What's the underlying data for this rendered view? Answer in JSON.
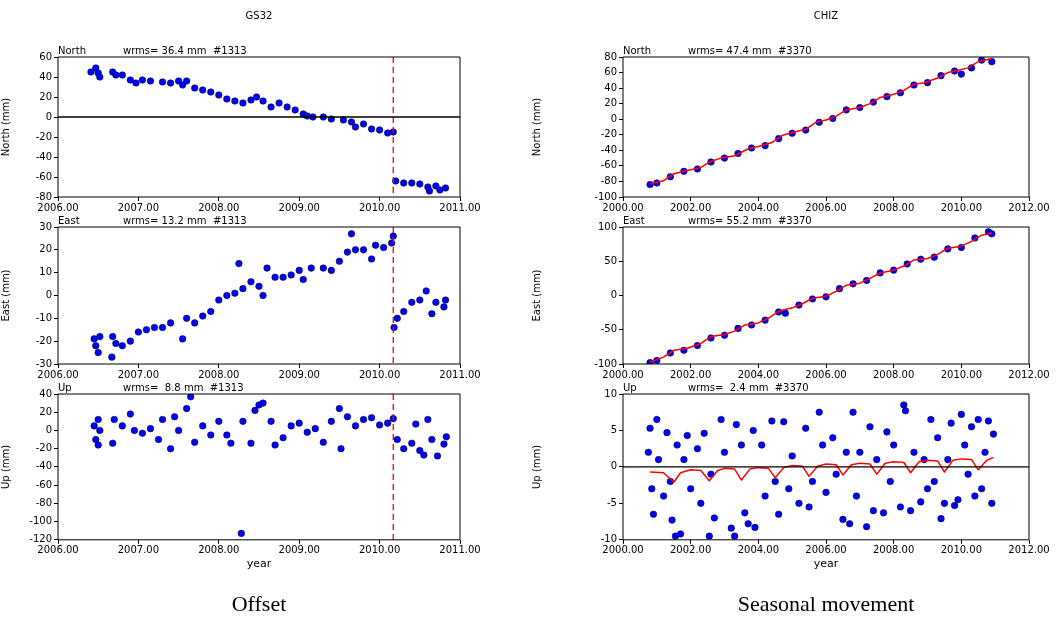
{
  "chart_data": [
    {
      "type": "scatter",
      "title": "GS32",
      "annotations": [
        "North",
        "wrms= 36.4 mm  #1313"
      ],
      "ylabel": "North (mm)",
      "marker": "circle",
      "xlim": [
        2006,
        2011
      ],
      "xticks": [
        {
          "value": 2006,
          "label": "2006.00"
        },
        {
          "value": 2007,
          "label": "2007.00"
        },
        {
          "value": 2008,
          "label": "2008.00"
        },
        {
          "value": 2009,
          "label": "2009.00"
        },
        {
          "value": 2010,
          "label": "2010.00"
        },
        {
          "value": 2011,
          "label": "2011.00"
        }
      ],
      "ylim": [
        -80,
        60
      ],
      "yticks": [
        -80,
        -60,
        -40,
        -20,
        0,
        20,
        40,
        60
      ],
      "ref_lines": [
        {
          "axis": "x",
          "value": 2010.17,
          "color": "#ff0000",
          "line_style": "dashed"
        },
        {
          "axis": "y",
          "value": 0,
          "color": "#000000"
        }
      ],
      "series": [
        {
          "color": "#0000ff",
          "x": [
            2006.41,
            2006.47,
            2006.5,
            2006.52,
            2006.68,
            2006.72,
            2006.8,
            2006.9,
            2006.97,
            2007.05,
            2007.15,
            2007.3,
            2007.4,
            2007.5,
            2007.55,
            2007.6,
            2007.7,
            2007.8,
            2007.9,
            2008.0,
            2008.1,
            2008.2,
            2008.3,
            2008.4,
            2008.47,
            2008.55,
            2008.65,
            2008.75,
            2008.85,
            2008.95,
            2009.05,
            2009.1,
            2009.17,
            2009.3,
            2009.4,
            2009.55,
            2009.65,
            2009.7,
            2009.8,
            2009.9,
            2010.0,
            2010.1,
            2010.17,
            2010.2,
            2010.3,
            2010.4,
            2010.5,
            2010.6,
            2010.62,
            2010.7,
            2010.75,
            2010.82
          ],
          "values": [
            45,
            49,
            44,
            40,
            45,
            42,
            42,
            37,
            34,
            37,
            36,
            35,
            34,
            36,
            32,
            36,
            29,
            27,
            25,
            22,
            18,
            16,
            14,
            17,
            20,
            16,
            10,
            14,
            10,
            7,
            3,
            1,
            0,
            0,
            -2,
            -3,
            -5,
            -10,
            -7,
            -12,
            -13,
            -16,
            -15,
            -64,
            -66,
            -66,
            -67,
            -70,
            -74,
            -69,
            -73,
            -71
          ]
        }
      ]
    },
    {
      "type": "scatter",
      "title": "CHIZ",
      "annotations": [
        "North",
        "wrms= 47.4 mm  #3370"
      ],
      "ylabel": "North (mm)",
      "marker": "circle",
      "xlim": [
        2000,
        2012
      ],
      "xticks": [
        {
          "value": 2000,
          "label": "2000.00"
        },
        {
          "value": 2002,
          "label": "2002.00"
        },
        {
          "value": 2004,
          "label": "2004.00"
        },
        {
          "value": 2006,
          "label": "2006.00"
        },
        {
          "value": 2008,
          "label": "2008.00"
        },
        {
          "value": 2010,
          "label": "2010.00"
        },
        {
          "value": 2012,
          "label": "2012.00"
        }
      ],
      "ylim": [
        -100,
        80
      ],
      "yticks": [
        -100,
        -80,
        -60,
        -40,
        -20,
        0,
        20,
        40,
        60,
        80
      ],
      "series": [
        {
          "color": "#0000ff",
          "x": [
            2000.8,
            2001.0,
            2001.4,
            2001.8,
            2002.2,
            2002.6,
            2003.0,
            2003.4,
            2003.8,
            2004.2,
            2004.6,
            2005.0,
            2005.4,
            2005.8,
            2006.2,
            2006.6,
            2007.0,
            2007.4,
            2007.8,
            2008.2,
            2008.6,
            2009.0,
            2009.4,
            2009.8,
            2010.0,
            2010.3,
            2010.6,
            2010.9
          ],
          "values": [
            -84,
            -82,
            -74,
            -67,
            -64,
            -55,
            -50,
            -44,
            -37,
            -34,
            -25,
            -18,
            -14,
            -4,
            1,
            12,
            15,
            22,
            29,
            34,
            44,
            47,
            56,
            62,
            58,
            66,
            76,
            74
          ]
        },
        {
          "type": "line",
          "marker": "none",
          "color": "#ff0000",
          "x": [
            2000.8,
            2001.2,
            2001.5,
            2001.9,
            2002.3,
            2002.6,
            2002.9,
            2003.3,
            2003.7,
            2004.0,
            2004.4,
            2004.7,
            2005.0,
            2005.4,
            2005.7,
            2006.0,
            2006.3,
            2006.6,
            2007.0,
            2007.3,
            2007.6,
            2008.0,
            2008.3,
            2008.6,
            2008.9,
            2009.3,
            2009.6,
            2009.9,
            2010.2,
            2010.5,
            2010.9
          ],
          "values": [
            -83,
            -79,
            -70,
            -66,
            -62,
            -54,
            -50,
            -47,
            -38,
            -35,
            -30,
            -21,
            -17,
            -13,
            -4,
            -1,
            4,
            12,
            15,
            20,
            28,
            32,
            37,
            45,
            47,
            53,
            60,
            63,
            66,
            74,
            78
          ]
        }
      ]
    },
    {
      "type": "scatter",
      "annotations": [
        "East",
        "wrms= 13.2 mm  #1313"
      ],
      "ylabel": "East (mm)",
      "marker": "circle",
      "xlim": [
        2006,
        2011
      ],
      "xticks": [
        {
          "value": 2006,
          "label": "2006.00"
        },
        {
          "value": 2007,
          "label": "2007.00"
        },
        {
          "value": 2008,
          "label": "2008.00"
        },
        {
          "value": 2009,
          "label": "2009.00"
        },
        {
          "value": 2010,
          "label": "2010.00"
        },
        {
          "value": 2011,
          "label": "2011.00"
        }
      ],
      "ylim": [
        -30,
        30
      ],
      "yticks": [
        -30,
        -20,
        -10,
        0,
        10,
        20,
        30
      ],
      "ref_lines": [
        {
          "axis": "x",
          "value": 2010.17,
          "color": "#ff0000",
          "line_style": "dashed"
        }
      ],
      "series": [
        {
          "color": "#0000ff",
          "x": [
            2006.45,
            2006.47,
            2006.5,
            2006.52,
            2006.67,
            2006.68,
            2006.72,
            2006.8,
            2006.9,
            2007.0,
            2007.1,
            2007.2,
            2007.3,
            2007.4,
            2007.55,
            2007.6,
            2007.7,
            2007.8,
            2007.9,
            2008.0,
            2008.1,
            2008.2,
            2008.25,
            2008.3,
            2008.4,
            2008.5,
            2008.55,
            2008.6,
            2008.7,
            2008.8,
            2008.9,
            2009.0,
            2009.05,
            2009.15,
            2009.3,
            2009.4,
            2009.5,
            2009.6,
            2009.65,
            2009.7,
            2009.8,
            2009.9,
            2009.95,
            2010.05,
            2010.15,
            2010.17,
            2010.18,
            2010.22,
            2010.3,
            2010.4,
            2010.5,
            2010.58,
            2010.65,
            2010.7,
            2010.8,
            2010.82
          ],
          "values": [
            -19,
            -22,
            -25,
            -18,
            -27,
            -18,
            -21,
            -22,
            -20,
            -16,
            -15,
            -14,
            -14,
            -12,
            -19,
            -10,
            -12,
            -9,
            -7,
            -2,
            0,
            1,
            14,
            3,
            6,
            4,
            0,
            12,
            8,
            8,
            9,
            11,
            7,
            12,
            12,
            11,
            15,
            19,
            27,
            20,
            20,
            16,
            22,
            21,
            23,
            26,
            -14,
            -10,
            -7,
            -3,
            -2,
            2,
            -8,
            -3,
            -5,
            -2
          ]
        }
      ]
    },
    {
      "type": "scatter",
      "annotations": [
        "East",
        "wrms= 55.2 mm  #3370"
      ],
      "ylabel": "East (mm)",
      "marker": "circle",
      "xlim": [
        2000,
        2012
      ],
      "xticks": [
        {
          "value": 2000,
          "label": "2000.00"
        },
        {
          "value": 2002,
          "label": "2002.00"
        },
        {
          "value": 2004,
          "label": "2004.00"
        },
        {
          "value": 2006,
          "label": "2006.00"
        },
        {
          "value": 2008,
          "label": "2008.00"
        },
        {
          "value": 2010,
          "label": "2010.00"
        },
        {
          "value": 2012,
          "label": "2012.00"
        }
      ],
      "ylim": [
        -100,
        100
      ],
      "yticks": [
        -100,
        -50,
        0,
        50,
        100
      ],
      "series": [
        {
          "color": "#0000ff",
          "x": [
            2000.8,
            2001.0,
            2001.4,
            2001.8,
            2002.2,
            2002.6,
            2003.0,
            2003.4,
            2003.8,
            2004.2,
            2004.6,
            2004.8,
            2005.2,
            2005.6,
            2006.0,
            2006.4,
            2006.8,
            2007.2,
            2007.6,
            2008.0,
            2008.4,
            2008.8,
            2009.2,
            2009.6,
            2010.0,
            2010.4,
            2010.8,
            2010.9
          ],
          "values": [
            -98,
            -95,
            -84,
            -80,
            -73,
            -62,
            -58,
            -48,
            -43,
            -36,
            -24,
            -26,
            -14,
            -5,
            -2,
            10,
            17,
            22,
            33,
            37,
            46,
            53,
            56,
            68,
            70,
            84,
            93,
            90
          ]
        },
        {
          "type": "line",
          "marker": "none",
          "color": "#ff0000",
          "x": [
            2000.8,
            2001.2,
            2001.5,
            2001.9,
            2002.3,
            2002.6,
            2003.0,
            2003.3,
            2003.6,
            2004.0,
            2004.3,
            2004.6,
            2005.0,
            2005.3,
            2005.6,
            2006.0,
            2006.3,
            2006.6,
            2007.0,
            2007.3,
            2007.6,
            2008.0,
            2008.3,
            2008.6,
            2009.0,
            2009.3,
            2009.6,
            2010.0,
            2010.3,
            2010.6,
            2010.9
          ],
          "values": [
            -97,
            -90,
            -80,
            -77,
            -70,
            -60,
            -57,
            -52,
            -43,
            -40,
            -33,
            -23,
            -18,
            -12,
            -4,
            -1,
            6,
            15,
            18,
            25,
            33,
            37,
            43,
            52,
            54,
            60,
            69,
            72,
            79,
            88,
            91
          ]
        }
      ]
    },
    {
      "type": "scatter",
      "annotations": [
        "Up",
        "wrms=  8.8 mm  #1313",
        "Offset"
      ],
      "ylabel": "Up (mm)",
      "xlabel": "year",
      "marker": "circle",
      "xlim": [
        2006,
        2011
      ],
      "xticks": [
        {
          "value": 2006,
          "label": "2006.00"
        },
        {
          "value": 2007,
          "label": "2007.00"
        },
        {
          "value": 2008,
          "label": "2008.00"
        },
        {
          "value": 2009,
          "label": "2009.00"
        },
        {
          "value": 2010,
          "label": "2010.00"
        },
        {
          "value": 2011,
          "label": "2011.00"
        }
      ],
      "ylim": [
        -120,
        40
      ],
      "yticks": [
        -120,
        -100,
        -80,
        -60,
        -40,
        -20,
        0,
        20,
        40
      ],
      "ref_lines": [
        {
          "axis": "x",
          "value": 2010.17,
          "color": "#ff0000",
          "line_style": "dashed"
        }
      ],
      "series": [
        {
          "color": "#0000ff",
          "x": [
            2006.45,
            2006.47,
            2006.5,
            2006.5,
            2006.52,
            2006.68,
            2006.7,
            2006.8,
            2006.9,
            2006.95,
            2007.05,
            2007.15,
            2007.25,
            2007.3,
            2007.4,
            2007.45,
            2007.5,
            2007.6,
            2007.65,
            2007.7,
            2007.8,
            2007.9,
            2008.0,
            2008.1,
            2008.15,
            2008.28,
            2008.3,
            2008.4,
            2008.45,
            2008.5,
            2008.55,
            2008.65,
            2008.7,
            2008.8,
            2008.9,
            2009.0,
            2009.1,
            2009.2,
            2009.3,
            2009.4,
            2009.5,
            2009.52,
            2009.6,
            2009.7,
            2009.8,
            2009.9,
            2010.0,
            2010.1,
            2010.17,
            2010.22,
            2010.3,
            2010.4,
            2010.45,
            2010.5,
            2010.55,
            2010.6,
            2010.65,
            2010.72,
            2010.8,
            2010.83
          ],
          "values": [
            5,
            -10,
            12,
            -16,
            0,
            -14,
            12,
            5,
            18,
            0,
            -3,
            2,
            -10,
            12,
            -20,
            15,
            0,
            24,
            37,
            -13,
            5,
            -5,
            10,
            -5,
            -14,
            -113,
            10,
            -14,
            22,
            28,
            30,
            10,
            -16,
            -8,
            5,
            8,
            -2,
            2,
            -13,
            10,
            24,
            -20,
            15,
            5,
            12,
            14,
            6,
            8,
            13,
            -10,
            -20,
            -14,
            7,
            -22,
            -27,
            12,
            -10,
            -28,
            -15,
            -7
          ]
        }
      ]
    },
    {
      "type": "scatter",
      "annotations": [
        "Up",
        "wrms=  2.4 mm  #3370",
        "Seasonal movement"
      ],
      "ylabel": "Up (mm)",
      "xlabel": "year",
      "marker": "circle",
      "xlim": [
        2000,
        2012
      ],
      "xticks": [
        {
          "value": 2000,
          "label": "2000.00"
        },
        {
          "value": 2002,
          "label": "2002.00"
        },
        {
          "value": 2004,
          "label": "2004.00"
        },
        {
          "value": 2006,
          "label": "2006.00"
        },
        {
          "value": 2008,
          "label": "2008.00"
        },
        {
          "value": 2010,
          "label": "2010.00"
        },
        {
          "value": 2012,
          "label": "2012.00"
        }
      ],
      "ylim": [
        -10,
        10
      ],
      "yticks": [
        -10,
        -5,
        0,
        5,
        10
      ],
      "ref_lines": [
        {
          "axis": "y",
          "value": 0,
          "color": "#000000"
        }
      ],
      "series": [
        {
          "color": "#0000ff",
          "x": [
            2000.75,
            2000.8,
            2000.85,
            2000.9,
            2001.0,
            2001.05,
            2001.2,
            2001.3,
            2001.4,
            2001.45,
            2001.55,
            2001.6,
            2001.7,
            2001.8,
            2001.9,
            2002.0,
            2002.2,
            2002.3,
            2002.4,
            2002.55,
            2002.6,
            2002.7,
            2002.9,
            2003.0,
            2003.2,
            2003.3,
            2003.35,
            2003.5,
            2003.6,
            2003.7,
            2003.85,
            2003.9,
            2004.1,
            2004.2,
            2004.4,
            2004.5,
            2004.6,
            2004.75,
            2004.9,
            2005.0,
            2005.2,
            2005.4,
            2005.5,
            2005.6,
            2005.8,
            2005.9,
            2006.0,
            2006.2,
            2006.3,
            2006.5,
            2006.6,
            2006.7,
            2006.8,
            2006.9,
            2007.0,
            2007.2,
            2007.3,
            2007.4,
            2007.5,
            2007.7,
            2007.8,
            2007.9,
            2008.0,
            2008.2,
            2008.3,
            2008.35,
            2008.5,
            2008.6,
            2008.8,
            2008.9,
            2009.0,
            2009.1,
            2009.2,
            2009.3,
            2009.4,
            2009.5,
            2009.6,
            2009.7,
            2009.8,
            2009.9,
            2010.0,
            2010.1,
            2010.2,
            2010.3,
            2010.4,
            2010.5,
            2010.6,
            2010.7,
            2010.8,
            2010.9,
            2010.95
          ],
          "values": [
            2,
            5.3,
            -3,
            -6.5,
            6.5,
            1,
            -4,
            4.7,
            -2,
            -7.3,
            -9.5,
            3,
            -9.2,
            1,
            4.3,
            -3,
            2.5,
            -5,
            4.6,
            -9.5,
            -1,
            -7,
            6.5,
            2,
            -8.4,
            -9.5,
            5.8,
            3,
            -6.3,
            -7.8,
            5,
            -8.3,
            3,
            -4,
            6.3,
            -2,
            -6.5,
            6.2,
            -3,
            1.5,
            -5,
            5.3,
            -5.5,
            -2,
            7.5,
            3,
            -3.5,
            4,
            -1,
            -7.2,
            2,
            -7.8,
            7.5,
            -4,
            2,
            -8.2,
            5.5,
            -6,
            1,
            -6.3,
            4.8,
            -2,
            3,
            -5.5,
            8.5,
            7.7,
            -6,
            2,
            -4.8,
            1,
            -3,
            6.5,
            -2,
            4,
            -7.1,
            -5,
            1,
            6,
            -5.3,
            -4.5,
            7.2,
            3,
            -1,
            5.5,
            -4,
            6.5,
            -3,
            2,
            6.3,
            -5,
            4.5
          ]
        },
        {
          "type": "line",
          "marker": "none",
          "color": "#ff0000",
          "x": [
            2000.8,
            2001.2,
            2001.5,
            2001.7,
            2002.0,
            2002.3,
            2002.55,
            2002.8,
            2003.0,
            2003.3,
            2003.5,
            2003.75,
            2004.0,
            2004.3,
            2004.5,
            2004.75,
            2005.0,
            2005.3,
            2005.5,
            2005.75,
            2006.0,
            2006.3,
            2006.5,
            2006.75,
            2007.0,
            2007.3,
            2007.5,
            2007.75,
            2008.0,
            2008.3,
            2008.5,
            2008.75,
            2009.0,
            2009.3,
            2009.5,
            2009.75,
            2010.0,
            2010.3,
            2010.5,
            2010.75,
            2010.95
          ],
          "values": [
            -0.7,
            -0.8,
            -2.1,
            -0.8,
            -0.4,
            -0.5,
            -1.9,
            -0.5,
            -0.2,
            -0.3,
            -1.8,
            -0.3,
            -0.1,
            -0.2,
            -1.5,
            -0.1,
            0.2,
            0.1,
            -1.3,
            0.1,
            0.4,
            0.3,
            -1.1,
            0.3,
            0.5,
            0.4,
            -1.0,
            0.5,
            0.7,
            0.6,
            -0.8,
            0.7,
            0.9,
            0.8,
            -0.7,
            0.9,
            1.1,
            1.0,
            -0.4,
            0.9,
            1.3
          ]
        }
      ]
    }
  ]
}
